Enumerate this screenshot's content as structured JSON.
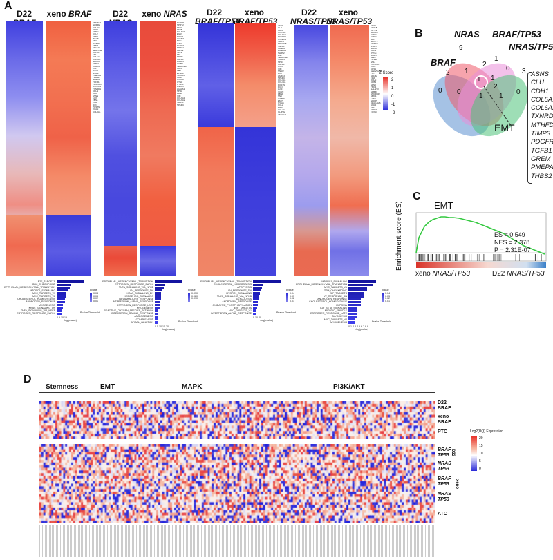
{
  "panel_labels": {
    "a": "A",
    "b": "B",
    "c": "C",
    "d": "D"
  },
  "panelA": {
    "titles": [
      {
        "cond": "D22",
        "gene": "BRAF"
      },
      {
        "cond": "xeno",
        "gene": "BRAF"
      },
      {
        "cond": "D22",
        "gene": "NRAS"
      },
      {
        "cond": "xeno",
        "gene": "NRAS"
      },
      {
        "cond": "D22",
        "gene": "BRAF/TP53"
      },
      {
        "cond": "xeno",
        "gene": "BRAF/TP53"
      },
      {
        "cond": "D22",
        "gene": "NRAS/TP53"
      },
      {
        "cond": "xeno",
        "gene": "NRAS/TP53"
      }
    ],
    "zscore_label": "Z-Score",
    "zscore_ticks": [
      "2",
      "1",
      "0",
      "-1",
      "-2"
    ],
    "gene_lists": [
      [
        "AMOTL2",
        "GLIPR2",
        "COL4A1",
        "NRP1",
        "TIMP1",
        "CCL2",
        "TPM1",
        "ITGA5",
        "TNC",
        "IGFBP7",
        "EMP3",
        "TAGLN",
        "SERPINE1",
        "CALD1",
        "FN1",
        "COL1A1",
        "COL5A2",
        "SPARC",
        "TIMP3",
        "LAMC2",
        "VIM",
        "MYL9",
        "SNAI2",
        "PMEPA1",
        "THBS2",
        "GREM1",
        "TGFB1",
        "PDGFRB",
        "MTHFD2",
        "TXNRD1",
        "CDH1",
        "CLU",
        "ASNS",
        "LOX",
        "FBN1",
        "LUM",
        "DCN",
        "POSTN",
        "VCAN",
        "COL3A1"
      ],
      [
        "DUSP6",
        "SPRY2",
        "ETV4",
        "ETV5",
        "PHLDA1",
        "EGR1",
        "FOSL1",
        "CCND1",
        "MYC",
        "IER3",
        "DUSP4",
        "SPRY4",
        "KRT19",
        "TFF3",
        "FN1",
        "TIMP1",
        "CALD1",
        "LAMB3",
        "ITGB4",
        "SERPINA1",
        "CDH3",
        "MET",
        "EPHA2",
        "S100A4",
        "CD44",
        "CXCL8",
        "CTGF",
        "CYR61",
        "ANXA1",
        "LGALS1",
        "TPM2",
        "FLNA",
        "VIM",
        "COL6A1",
        "COL6A2",
        "THBS1",
        "SPARC"
      ],
      [
        "MSX1",
        "RHOU",
        "DDIT3",
        "VEGFA",
        "LDLR",
        "ANGPTL4",
        "SLC2A1",
        "ENO2",
        "PDK1",
        "BNIP3",
        "CA9",
        "NDRG1",
        "ADM",
        "PGK1",
        "HK2",
        "ALDOA",
        "LDHA",
        "P4HA1",
        "EGLN3",
        "KDM3A",
        "INSIG1",
        "HMGCR",
        "SQLE",
        "IDI1",
        "FDFT1",
        "SC5D",
        "DHCR7",
        "LSS",
        "CYP51A1",
        "MVD",
        "ACAT2",
        "SCD",
        "FADS2",
        "ELOVL6",
        "TMEM97",
        "STARD4",
        "NPC1"
      ],
      [
        "ATF3",
        "JUNB",
        "FOS",
        "IER2",
        "KLF6",
        "GADD45B",
        "NR4A1",
        "PPP1R15A",
        "DUSP1",
        "ZFP36",
        "SOCS3",
        "RHOB",
        "BTG2",
        "CDKN1A",
        "MCL1",
        "IRF1",
        "NFKBIA",
        "TNFAIP3",
        "CXCL2",
        "CCL20",
        "IL6",
        "PTGS2",
        "HBEGF",
        "EREG",
        "AREG",
        "PLAUR",
        "SERPINB2",
        "LIF",
        "ICAM1",
        "BIRC3",
        "RELB",
        "NFKB2",
        "TRAF1",
        "MAP3K8",
        "SDC4",
        "KDM6B"
      ],
      [
        "ASNS",
        "CLU",
        "CDH1",
        "COL5A1",
        "COL6A2",
        "TXNRD1",
        "MTHFD2",
        "TIMP3",
        "PDGFRB",
        "TGFB1",
        "GREM1",
        "PMEPA1",
        "THBS2",
        "FN1",
        "SERPINE1",
        "TAGLN",
        "TPM1",
        "CALD1",
        "MYL9",
        "VIM",
        "SNAI2",
        "LOX",
        "LAMC2",
        "SPARC",
        "COL1A1",
        "COL3A1",
        "POSTN",
        "DCN",
        "LUM",
        "VCAN",
        "FBN1",
        "TNC",
        "IGFBP7",
        "EMP3",
        "ITGA5",
        "CCL2",
        "NRP1",
        "COL4A1",
        "GLIPR2",
        "AMOTL2"
      ],
      [
        "MCM2",
        "MCM3",
        "MCM4",
        "MCM5",
        "MCM6",
        "MCM7",
        "PCNA",
        "TYMS",
        "RRM2",
        "E2F1",
        "CDC6",
        "CDT1",
        "GINS2",
        "CCNE1",
        "CCNE2",
        "CDC45",
        "POLA1",
        "PRIM1",
        "RFC4",
        "FEN1",
        "UNG",
        "DHFR",
        "TK1",
        "RAD51",
        "BRCA1",
        "CHEK1",
        "CLSPN",
        "ORC1",
        "DUT",
        "POLE2",
        "HELLS",
        "UHRF1",
        "DNMT1",
        "SLBP",
        "HIST1H4C",
        "CCND1",
        "MYC",
        "NPM1",
        "NCL"
      ],
      [
        "HSPA1A",
        "HSPA1B",
        "DNAJB1",
        "HSPH1",
        "HSP90AA1",
        "BAG3",
        "CRYAB",
        "HSPB1",
        "SERPINH1",
        "DNAJA1",
        "CHORDC1",
        "FKBP4",
        "STIP1",
        "HSPA8",
        "HSPD1",
        "HSPE1",
        "CCT2",
        "CCT3",
        "CCT5",
        "CCT6A",
        "TCP1",
        "PFDN2",
        "PPIA",
        "PPIB",
        "CALR",
        "PDIA3",
        "PDIA4",
        "HSPA5",
        "HYOU1",
        "DNAJB11",
        "SEL1L",
        "SDF2L1",
        "MANF",
        "CRELD2",
        "SEC61B",
        "SSR3",
        "TRAM1",
        "ERLEC1"
      ],
      [
        "KRT8",
        "KRT18",
        "KRT19",
        "EPCAM",
        "CLDN4",
        "CLDN7",
        "ELF3",
        "SPINT1",
        "SPINT2",
        "ESRP1",
        "GRHL2",
        "CDH1",
        "OVOL1",
        "RAB25",
        "MAL2",
        "PRSS8",
        "ST14",
        "TACSTD2",
        "LAD1",
        "CDS1",
        "MARVELD3",
        "TJP3",
        "AP1M2",
        "F11R",
        "OCLN",
        "CRB3",
        "EPN3",
        "TMC4",
        "GALNT3",
        "ERBB3",
        "ANKRD22",
        "MUC1",
        "LCN2",
        "S100P",
        "CEACAM6",
        "AGR2",
        "TFF1",
        "SPDEF",
        "FOXA1"
      ]
    ],
    "bar_groups": [
      {
        "terms": [
          "E2F_TARGETS",
          "G2M_CHECKPOINT",
          "EPITHELIAL_MESENCHYMAL_TRANSITION",
          "MTORC1_SIGNALING",
          "MYC_TARGETS_V1",
          "MYC_TARGETS_V2",
          "CHOLESTEROL_HOMEOSTASIS",
          "ANDROGEN_RESPONSE",
          "MYOGENESIS",
          "KRAS_SIGNALING_UP",
          "TNFA_SIGNALING_VIA_NFKB",
          "ESTROGEN_RESPONSE_EARLY"
        ],
        "values": [
          17,
          9,
          8,
          7,
          6,
          6,
          5,
          5,
          4,
          4,
          3,
          3
        ],
        "axis_label": "-log(pvalue)",
        "ticks": [
          "0",
          "5",
          "10",
          "15"
        ],
        "legend_title": "pvalue",
        "legend_ticks": [
          "0.04",
          "0.03",
          "0.02",
          "0.01"
        ],
        "legend_note": "Pvalue Threshold"
      },
      {
        "terms": [
          "EPITHELIAL_MESENCHYMAL_TRANSITION",
          "ESTROGEN_RESPONSE_EARLY",
          "TNFA_SIGNALING_VIA_NFKB",
          "UV_RESPONSE_DN",
          "KRAS_SIGNALING_DN",
          "HEDGEHOG_SIGNALING",
          "INFLAMMATORY_RESPONSE",
          "INTERFERON_ALPHA_RESPONSE",
          "ESTROGEN_RESPONSE_LATE",
          "MYOGENESIS",
          "REACTIVE_OXYGEN_SPECIES_PATHWAY",
          "INTERFERON_GAMMA_RESPONSE",
          "ANGIOGENESIS",
          "COMPLEMENT",
          "APICAL_JUNCTION"
        ],
        "values": [
          22,
          8,
          7,
          6,
          5,
          5,
          5,
          4,
          4,
          4,
          3,
          3,
          3,
          2,
          2
        ],
        "axis_label": "-log(pvalue)",
        "ticks": [
          "0",
          "5",
          "10",
          "15",
          "20"
        ],
        "legend_title": "pvalue",
        "legend_ticks": [
          "0.030",
          "0.020",
          "0.010"
        ],
        "legend_note": "Pvalue Threshold"
      },
      {
        "terms": [
          "EPITHELIAL_MESENCHYMAL_TRANSITION",
          "CHOLESTEROL_HOMEOSTASIS",
          "APOPTOSIS",
          "UV_RESPONSE_DN",
          "MTORC1_SIGNALING",
          "TNFA_SIGNALING_VIA_NFKB",
          "GLYCOLYSIS",
          "ANDROGEN_RESPONSE",
          "OXIDATIVE_PHOSPHORYLATION",
          "E2F_TARGETS",
          "MYC_TARGETS_V1",
          "INTERFERON_ALPHA_RESPONSE"
        ],
        "values": [
          28,
          10,
          9,
          8,
          7,
          6,
          6,
          5,
          5,
          4,
          3,
          3
        ],
        "axis_label": "-log(pvalue)",
        "ticks": [
          "0",
          "10",
          "20"
        ],
        "legend_title": "pvalue",
        "legend_ticks": [
          "0.04",
          "0.03",
          "0.02",
          "0.01"
        ],
        "legend_note": "Pvalue Threshold"
      },
      {
        "terms": [
          "MTORC1_SIGNALING",
          "EPITHELIAL_MESENCHYMAL_TRANSITION",
          "MYC_TARGETS_V1",
          "G2M_CHECKPOINT",
          "E2F_TARGETS",
          "UV_RESPONSE_DN",
          "ANDROGEN_RESPONSE",
          "CHOLESTEROL_HOMEOSTASIS",
          "HYPOXIA",
          "TGF_BETA_SIGNALING",
          "MITOTIC_SPINDLE",
          "ESTROGEN_RESPONSE_LATE",
          "GLYCOLYSIS",
          "MYC_TARGETS_V2",
          "MYOGENESIS"
        ],
        "values": [
          9,
          8,
          6,
          6,
          5,
          5,
          4,
          4,
          4,
          3,
          3,
          3,
          3,
          2,
          2
        ],
        "axis_label": "-log(pvalue)",
        "ticks": [
          "0",
          "1",
          "2",
          "3",
          "4",
          "5",
          "6",
          "7",
          "8",
          "9"
        ],
        "legend_title": "pvalue",
        "legend_ticks": [
          "0.04",
          "0.03",
          "0.02",
          "0.01"
        ],
        "legend_note": "Pvalue Threshold"
      }
    ]
  },
  "panelB": {
    "sets": [
      "BRAF",
      "NRAS",
      "BRAF/TP53",
      "NRAS/TP53"
    ],
    "numbers": [
      "9",
      "2",
      "0",
      "1",
      "2",
      "0",
      "1",
      "1",
      "1",
      "0",
      "1",
      "3",
      "0",
      "1",
      "2"
    ],
    "emt_label": "EMT",
    "emt_genes": [
      "ASNS",
      "CLU",
      "CDH1",
      "COL5A1",
      "COL6A2",
      "TXNRD1",
      "MTHFD2",
      "TIMP3",
      "PDGFRB",
      "TGFB1",
      "GREM",
      "PMEPA1",
      "THBS2"
    ]
  },
  "panelC": {
    "title": "EMT",
    "ylabel": "Enrichment score (ES)",
    "stats": [
      "ES = 0.549",
      "NES = 2.378",
      "P = 2.31E-07"
    ],
    "left_label": {
      "cond": "xeno",
      "gene": "NRAS/TP53"
    },
    "right_label": {
      "cond": "D22",
      "gene": "NRAS/TP53"
    }
  },
  "panelD": {
    "headers": [
      "Stemness",
      "EMT",
      "MAPK",
      "PI3K/AKT"
    ],
    "top_rows": [
      {
        "label": "D22",
        "sub": "BRAF"
      },
      {
        "label": "xeno",
        "sub": "BRAF"
      },
      {
        "label": "PTC",
        "sub": ""
      }
    ],
    "bottom_rows": [
      {
        "gene": "BRAF",
        "sub": "TP53"
      },
      {
        "gene": "NRAS",
        "sub": "TP53"
      },
      {
        "gene": "BRAF",
        "sub": "TP53"
      },
      {
        "gene": "NRAS",
        "sub": "TP53"
      },
      {
        "gene": "ATC",
        "sub": ""
      }
    ],
    "group_labels": [
      "D22",
      "xeno"
    ],
    "legend_title": "Log2(UQ) Expression",
    "legend_ticks": [
      "20",
      "15",
      "10",
      "5",
      "0"
    ]
  },
  "colors": {
    "red": "#e8332b",
    "white": "#ffffff",
    "blue": "#2a2ad8",
    "green_curve": "#34c940"
  }
}
